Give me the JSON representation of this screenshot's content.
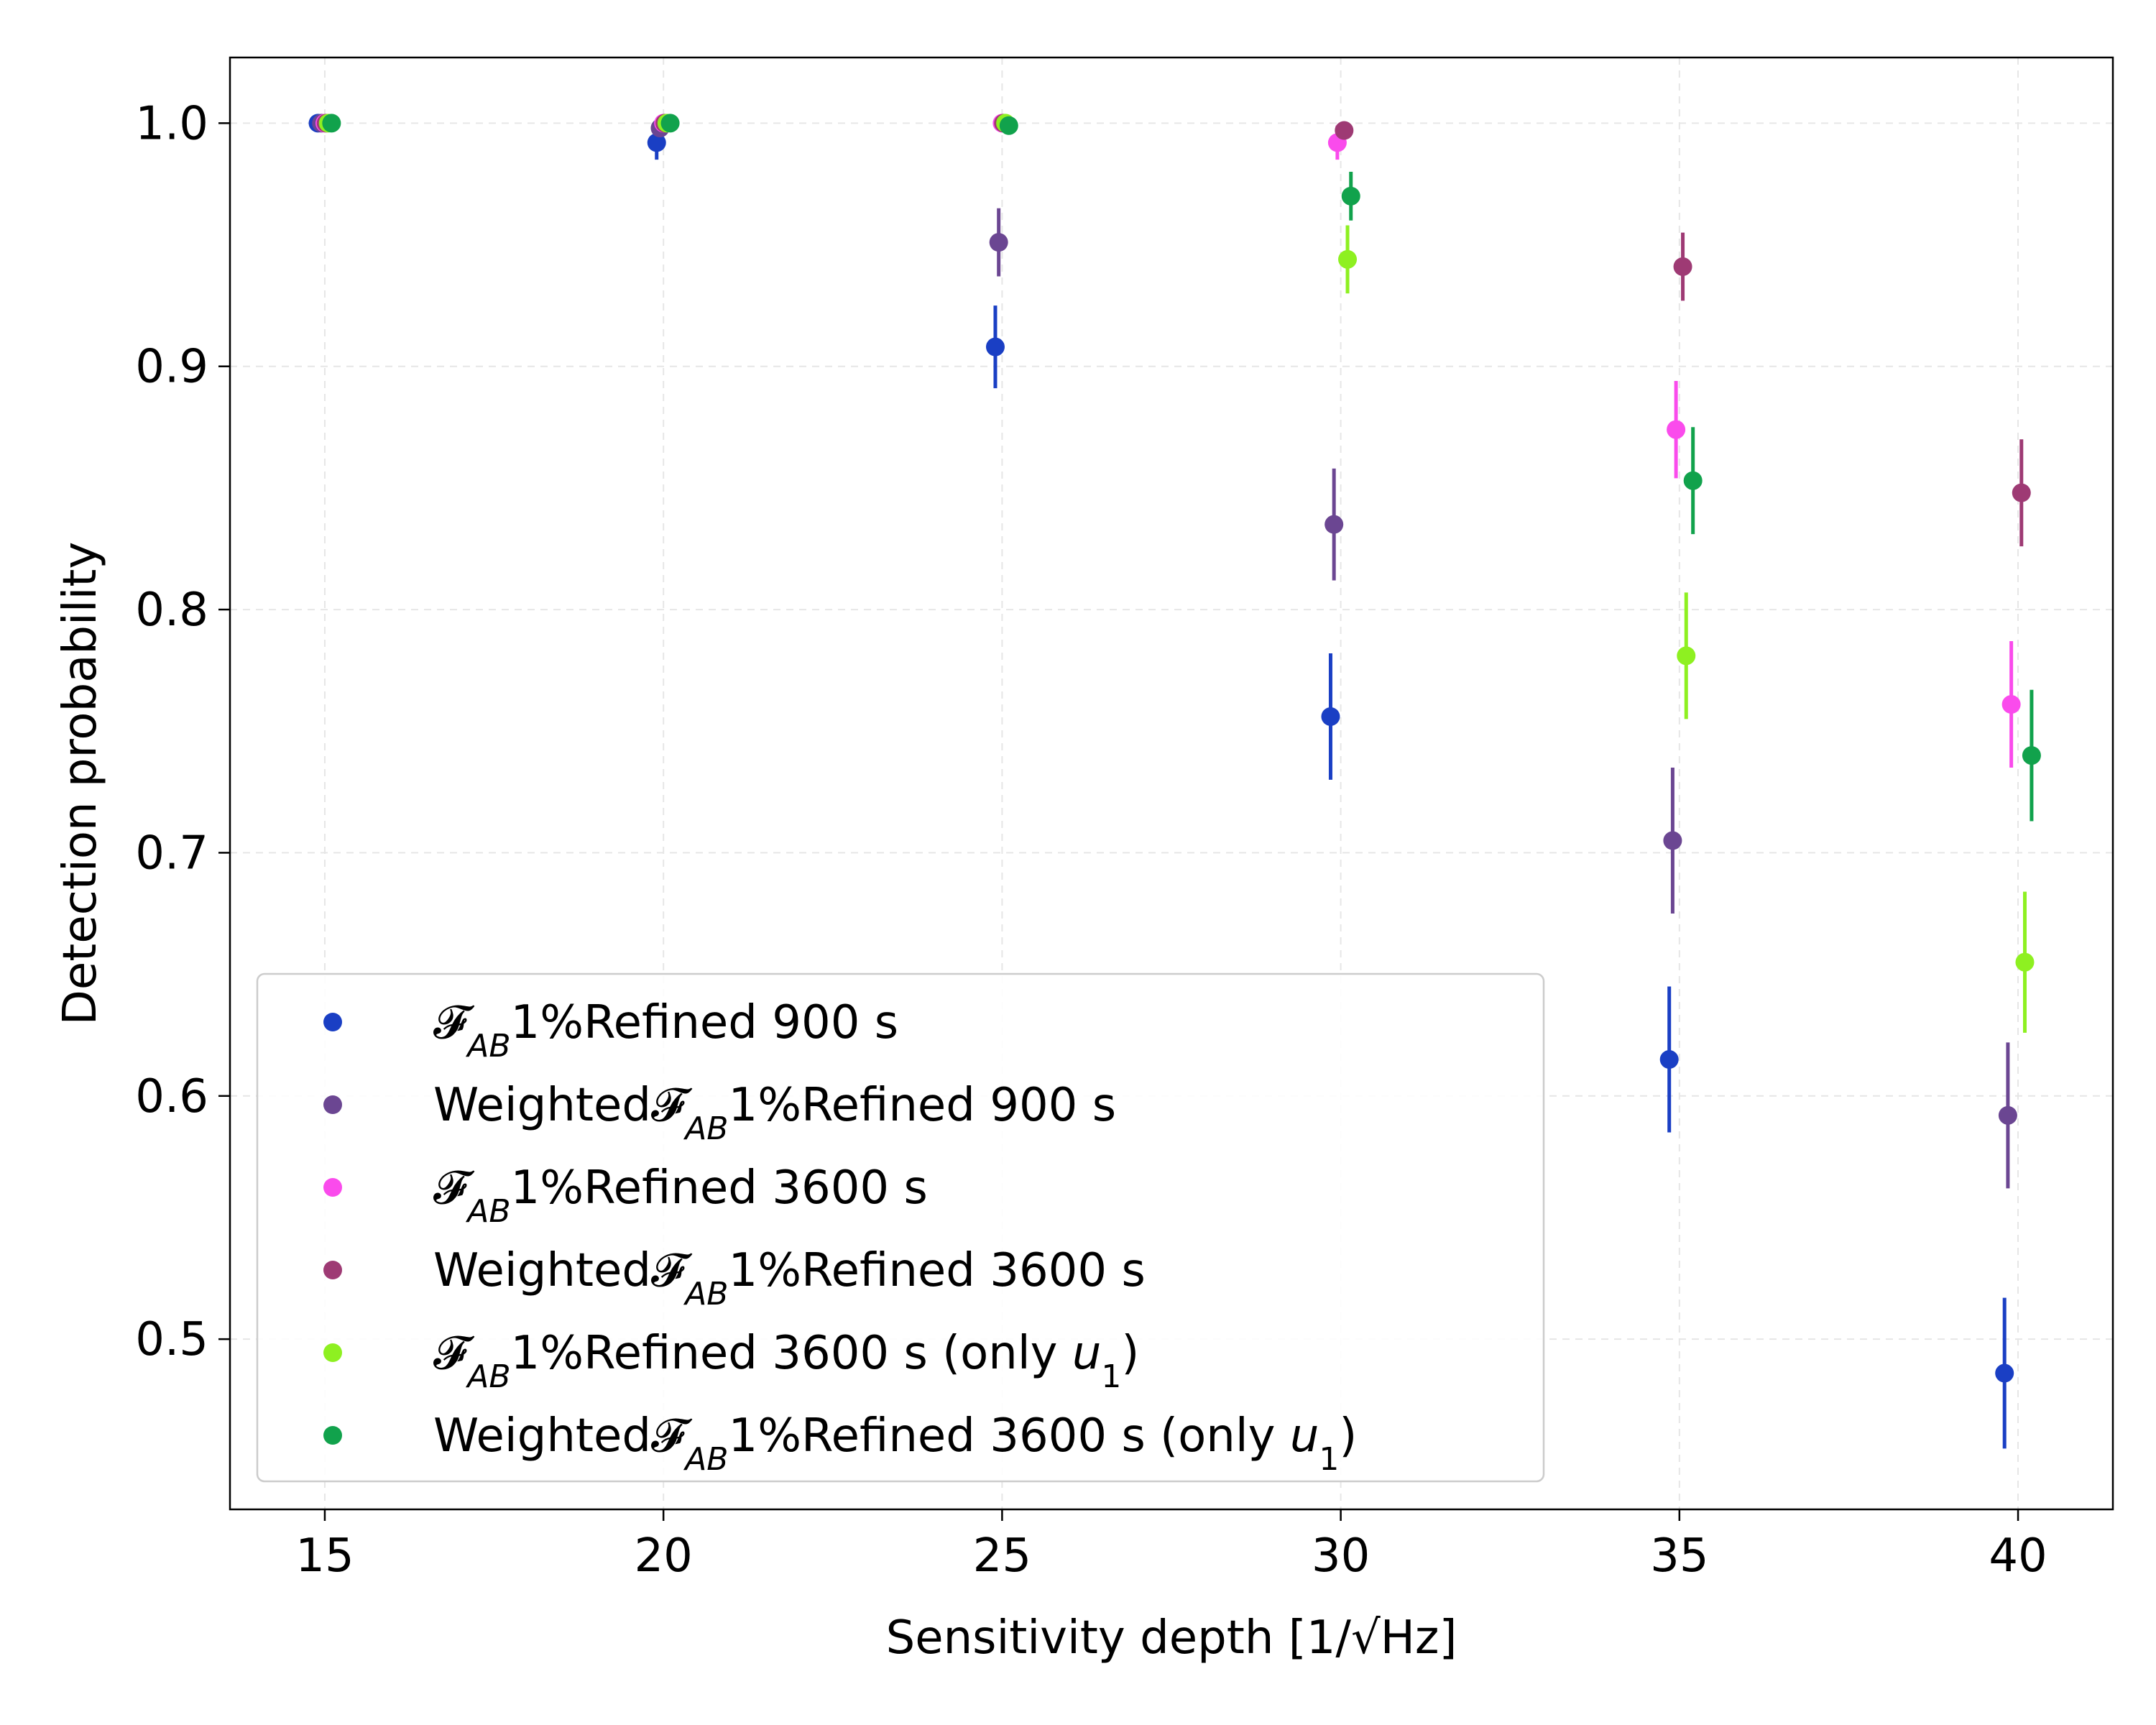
{
  "chart_data": {
    "type": "scatter",
    "title": "",
    "xlabel": "Sensitivity depth [1/√Hz]",
    "ylabel": "Detection probability",
    "xlim": [
      13.6,
      41.4
    ],
    "ylim": [
      0.43,
      1.027
    ],
    "x_ticks": [
      15,
      20,
      25,
      30,
      35,
      40
    ],
    "x_tick_labels": [
      "15",
      "20",
      "25",
      "30",
      "35",
      "40"
    ],
    "y_ticks": [
      0.5,
      0.6,
      0.7,
      0.8,
      0.9,
      1.0
    ],
    "y_tick_labels": [
      "0.5",
      "0.6",
      "0.7",
      "0.8",
      "0.9",
      "1.0"
    ],
    "grid": true,
    "legend_position": "lower-left",
    "series": [
      {
        "name": "𝓕AB1%Refined 900 s",
        "label_parts": [
          "𝓕",
          "AB",
          "1%Refined 900 s"
        ],
        "color": "#1a3fc4",
        "x": [
          14.9,
          19.9,
          24.9,
          29.85,
          34.85,
          39.8
        ],
        "y": [
          1.0,
          0.992,
          0.908,
          0.756,
          0.615,
          0.486
        ],
        "err": [
          0.0,
          0.007,
          0.017,
          0.026,
          0.03,
          0.031
        ]
      },
      {
        "name": "Weighted𝓕AB1%Refined 900 s",
        "label_parts": [
          "Weighted𝓕",
          "AB",
          "1%Refined 900 s"
        ],
        "color": "#6b4692",
        "x": [
          14.95,
          19.95,
          24.95,
          29.9,
          34.9,
          39.85
        ],
        "y": [
          1.0,
          0.998,
          0.951,
          0.835,
          0.705,
          0.592
        ],
        "err": [
          0.0,
          0.003,
          0.014,
          0.023,
          0.03,
          0.03
        ]
      },
      {
        "name": "𝓕AB1%Refined 3600 s",
        "label_parts": [
          "𝓕",
          "AB",
          "1%Refined 3600 s"
        ],
        "color": "#fa4bec",
        "x": [
          15.0,
          20.0,
          25.0,
          29.95,
          34.95,
          39.9
        ],
        "y": [
          1.0,
          1.0,
          1.0,
          0.992,
          0.874,
          0.761
        ],
        "err": [
          0.0,
          0.0,
          0.0,
          0.007,
          0.02,
          0.026
        ]
      },
      {
        "name": "Weighted𝓕AB1%Refined 3600 s",
        "label_parts": [
          "Weighted𝓕",
          "AB",
          "1%Refined 3600 s"
        ],
        "color": "#9e3a74",
        "x": [
          15.02,
          20.02,
          25.02,
          30.05,
          35.05,
          40.05
        ],
        "y": [
          1.0,
          1.0,
          1.0,
          0.997,
          0.941,
          0.848
        ],
        "err": [
          0.0,
          0.0,
          0.0,
          0.003,
          0.014,
          0.022
        ]
      },
      {
        "name": "𝓕AB1%Refined 3600 s (only u1)",
        "label_parts": [
          "𝓕",
          "AB",
          "1%Refined 3600 s (only ",
          "u",
          "1",
          ")"
        ],
        "color": "#8ef021",
        "x": [
          15.05,
          20.05,
          25.05,
          30.1,
          35.1,
          40.1
        ],
        "y": [
          1.0,
          1.0,
          1.0,
          0.944,
          0.781,
          0.655
        ],
        "err": [
          0.0,
          0.0,
          0.0,
          0.014,
          0.026,
          0.029
        ]
      },
      {
        "name": "Weighted𝓕AB1%Refined 3600 s (only u1)",
        "label_parts": [
          "Weighted𝓕",
          "AB",
          "1%Refined 3600 s (only ",
          "u",
          "1",
          ")"
        ],
        "color": "#11a24c",
        "x": [
          15.1,
          20.1,
          25.1,
          30.15,
          35.2,
          40.2
        ],
        "y": [
          1.0,
          1.0,
          0.999,
          0.97,
          0.853,
          0.74
        ],
        "err": [
          0.0,
          0.0,
          0.002,
          0.01,
          0.022,
          0.027
        ]
      }
    ]
  }
}
